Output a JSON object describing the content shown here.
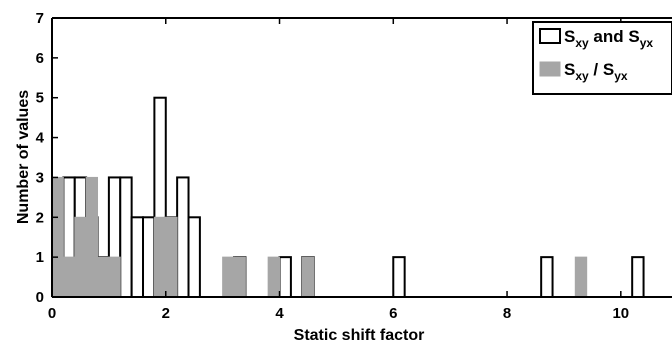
{
  "chart_data": {
    "type": "bar",
    "xlabel": "Static shift factor",
    "ylabel": "Number of values",
    "xlim": [
      0,
      10.9
    ],
    "ylim": [
      0,
      7
    ],
    "bin_width": 0.2,
    "xticks": [
      "0",
      "2",
      "4",
      "6",
      "8",
      "10"
    ],
    "yticks": [
      "0",
      "1",
      "2",
      "3",
      "4",
      "5",
      "6",
      "7"
    ],
    "grid": false,
    "legend_position": "top-right",
    "series": [
      {
        "name": "Sxy and Syx",
        "legend": {
          "main": "S",
          "sub1": "xy",
          "mid": " and S",
          "sub2": "yx"
        },
        "fill": "#ffffff",
        "stroke": "#000000",
        "bins": [
          {
            "x": 0.3,
            "count": 3
          },
          {
            "x": 0.5,
            "count": 3
          },
          {
            "x": 0.7,
            "count": 2
          },
          {
            "x": 0.9,
            "count": 1
          },
          {
            "x": 1.1,
            "count": 3
          },
          {
            "x": 1.3,
            "count": 3
          },
          {
            "x": 1.5,
            "count": 2
          },
          {
            "x": 1.7,
            "count": 2
          },
          {
            "x": 1.9,
            "count": 5
          },
          {
            "x": 2.1,
            "count": 2
          },
          {
            "x": 2.3,
            "count": 3
          },
          {
            "x": 2.5,
            "count": 2
          },
          {
            "x": 3.3,
            "count": 1
          },
          {
            "x": 4.1,
            "count": 1
          },
          {
            "x": 4.5,
            "count": 1
          },
          {
            "x": 6.1,
            "count": 1
          },
          {
            "x": 8.7,
            "count": 1
          },
          {
            "x": 10.3,
            "count": 1
          }
        ]
      },
      {
        "name": "Sxy / Syx",
        "legend": {
          "main": "S",
          "sub1": "xy",
          "mid": " / S",
          "sub2": "yx"
        },
        "fill": "#a6a6a6",
        "stroke": "#a6a6a6",
        "bins": [
          {
            "x": 0.1,
            "count": 3
          },
          {
            "x": 0.3,
            "count": 1
          },
          {
            "x": 0.5,
            "count": 2
          },
          {
            "x": 0.7,
            "count": 3
          },
          {
            "x": 0.9,
            "count": 1
          },
          {
            "x": 1.1,
            "count": 1
          },
          {
            "x": 1.9,
            "count": 2
          },
          {
            "x": 2.1,
            "count": 2
          },
          {
            "x": 3.1,
            "count": 1
          },
          {
            "x": 3.3,
            "count": 1
          },
          {
            "x": 3.9,
            "count": 1
          },
          {
            "x": 4.5,
            "count": 1
          },
          {
            "x": 9.3,
            "count": 1
          }
        ]
      }
    ]
  }
}
